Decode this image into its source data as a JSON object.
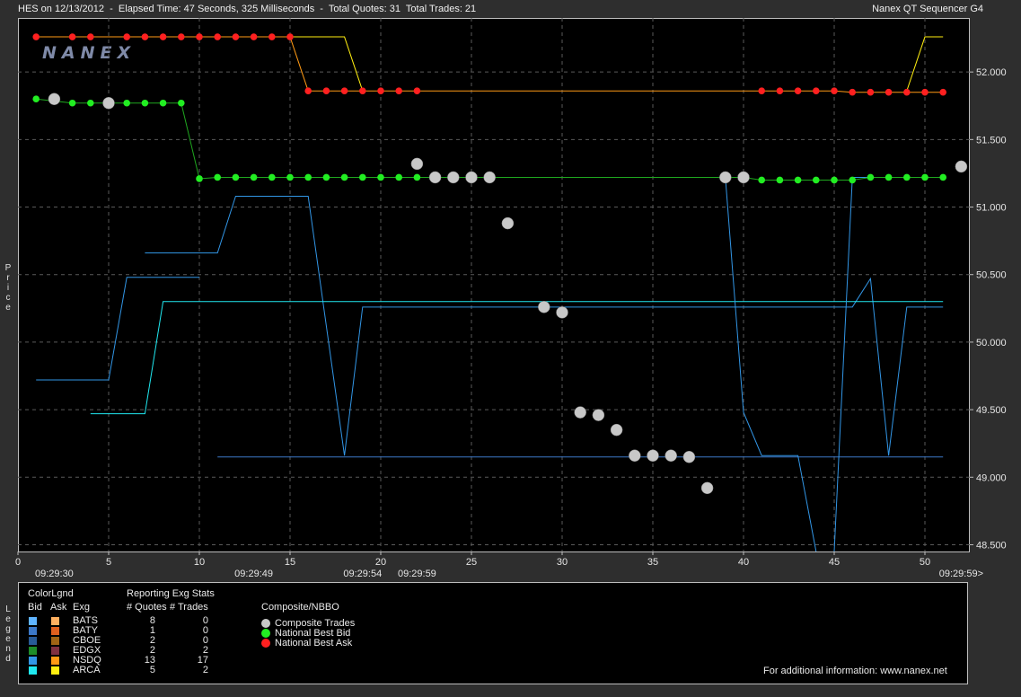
{
  "header": {
    "left": "HES on 12/13/2012  -  Elapsed Time: 47 Seconds, 325 Milliseconds  -  Total Quotes: 31  Total Trades: 21",
    "right": "Nanex QT Sequencer G4",
    "logo": "NANEX"
  },
  "side": {
    "price": "Price",
    "legend": "Legend"
  },
  "legend": {
    "title": "ColorLgnd",
    "col_bid": "Bid",
    "col_ask": "Ask",
    "col_exg": "Exg",
    "stats_title": "Reporting Exg Stats",
    "col_quotes": "# Quotes",
    "col_trades": "# Trades",
    "rows": [
      {
        "exg": "BATS",
        "quotes": "8",
        "trades": "0",
        "bid_color": "#5fb4ff",
        "ask_color": "#ffb060"
      },
      {
        "exg": "BATY",
        "quotes": "1",
        "trades": "0",
        "bid_color": "#3c78c8",
        "ask_color": "#e0601e"
      },
      {
        "exg": "CBOE",
        "quotes": "2",
        "trades": "0",
        "bid_color": "#285a96",
        "ask_color": "#a06414"
      },
      {
        "exg": "EDGX",
        "quotes": "2",
        "trades": "2",
        "bid_color": "#1e8c28",
        "ask_color": "#803040"
      },
      {
        "exg": "NSDQ",
        "quotes": "13",
        "trades": "17",
        "bid_color": "#3296e6",
        "ask_color": "#ff9a14"
      },
      {
        "exg": "ARCA",
        "quotes": "5",
        "trades": "2",
        "bid_color": "#20e8f0",
        "ask_color": "#ffee10"
      }
    ],
    "composite_title": "Composite/NBBO",
    "composite": [
      {
        "label": "Composite Trades",
        "color": "#c8c8c8"
      },
      {
        "label": "National Best Bid",
        "color": "#22ee22"
      },
      {
        "label": "National Best Ask",
        "color": "#ff2020"
      }
    ],
    "footer": "For additional information: www.nanex.net"
  },
  "chart_data": {
    "type": "line",
    "xlim": [
      0,
      52
    ],
    "ylim": [
      48.45,
      52.4
    ],
    "xticks": [
      0,
      5,
      10,
      15,
      20,
      25,
      30,
      35,
      40,
      45,
      50
    ],
    "yticks": [
      "48.500",
      "49.000",
      "49.500",
      "50.000",
      "50.500",
      "51.000",
      "51.500",
      "52.000"
    ],
    "time_labels": [
      {
        "x": 2,
        "label": "09:29:30"
      },
      {
        "x": 13,
        "label": "09:29:49"
      },
      {
        "x": 19,
        "label": "09:29:54"
      },
      {
        "x": 22,
        "label": "09:29:59"
      },
      {
        "x": 52,
        "label": "09:29:59>"
      }
    ],
    "series": [
      {
        "name": "National Best Bid",
        "color": "#1fa81f",
        "marker_color": "#22ee22",
        "x": [
          1,
          3,
          4,
          5,
          6,
          7,
          8,
          9,
          10,
          11,
          12,
          13,
          14,
          15,
          16,
          17,
          18,
          19,
          20,
          21,
          22,
          40,
          41,
          42,
          43,
          44,
          45,
          46,
          47,
          48,
          49,
          50,
          51
        ],
        "y": [
          51.8,
          51.77,
          51.77,
          51.77,
          51.77,
          51.77,
          51.77,
          51.77,
          51.21,
          51.22,
          51.22,
          51.22,
          51.22,
          51.22,
          51.22,
          51.22,
          51.22,
          51.22,
          51.22,
          51.22,
          51.22,
          51.22,
          51.2,
          51.2,
          51.2,
          51.2,
          51.2,
          51.2,
          51.22,
          51.22,
          51.22,
          51.22,
          51.22
        ]
      },
      {
        "name": "National Best Ask",
        "color": "#ff9a14",
        "marker_color": "#ff2020",
        "x": [
          1,
          3,
          4,
          6,
          7,
          8,
          9,
          10,
          11,
          12,
          13,
          14,
          15,
          16,
          17,
          18,
          19,
          20,
          21,
          22,
          41,
          42,
          43,
          44,
          45,
          46,
          47,
          48,
          49,
          50,
          51
        ],
        "y": [
          52.26,
          52.26,
          52.26,
          52.26,
          52.26,
          52.26,
          52.26,
          52.26,
          52.26,
          52.26,
          52.26,
          52.26,
          52.26,
          51.86,
          51.86,
          51.86,
          51.86,
          51.86,
          51.86,
          51.86,
          51.86,
          51.86,
          51.86,
          51.86,
          51.86,
          51.85,
          51.85,
          51.85,
          51.85,
          51.85,
          51.85
        ]
      },
      {
        "name": "Composite Trades",
        "color": "#c8c8c8",
        "x": [
          2,
          5,
          22,
          23,
          24,
          25,
          26,
          27,
          29,
          30,
          31,
          32,
          33,
          34,
          35,
          36,
          37,
          38,
          39,
          40,
          52
        ],
        "y": [
          51.8,
          51.77,
          51.32,
          51.22,
          51.22,
          51.22,
          51.22,
          50.88,
          50.26,
          50.22,
          49.48,
          49.46,
          49.35,
          49.16,
          49.16,
          49.16,
          49.15,
          48.92,
          51.22,
          51.22,
          51.3
        ]
      }
    ]
  }
}
